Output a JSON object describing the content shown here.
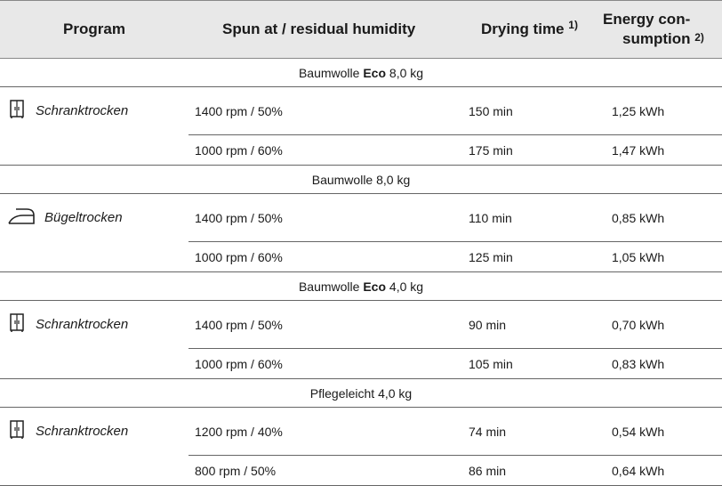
{
  "header": {
    "program": "Program",
    "spun": "Spun at / residual humidity",
    "drying": "Drying time",
    "drying_note": "1)",
    "energy_line1": "Energy con-",
    "energy_line2": "sumption",
    "energy_note": "2)"
  },
  "groups": [
    {
      "title_pre": "Baumwolle ",
      "title_bold": "Eco",
      "title_post": " 8,0 kg",
      "program_icon": "wardrobe-icon",
      "program_label": "Schranktrocken",
      "rows": [
        {
          "spun": "1400 rpm / 50%",
          "time": "150 min",
          "energy": "1,25 kWh"
        },
        {
          "spun": "1000 rpm / 60%",
          "time": "175 min",
          "energy": "1,47 kWh"
        }
      ]
    },
    {
      "title_pre": "Baumwolle 8,0 kg",
      "title_bold": "",
      "title_post": "",
      "program_icon": "iron-icon",
      "program_label": "Bügeltrocken",
      "rows": [
        {
          "spun": "1400 rpm / 50%",
          "time": "110 min",
          "energy": "0,85 kWh"
        },
        {
          "spun": "1000 rpm / 60%",
          "time": "125 min",
          "energy": "1,05 kWh"
        }
      ]
    },
    {
      "title_pre": "Baumwolle ",
      "title_bold": "Eco",
      "title_post": " 4,0 kg",
      "program_icon": "wardrobe-icon",
      "program_label": "Schranktrocken",
      "rows": [
        {
          "spun": "1400 rpm / 50%",
          "time": "90 min",
          "energy": "0,70 kWh"
        },
        {
          "spun": "1000 rpm / 60%",
          "time": "105 min",
          "energy": "0,83 kWh"
        }
      ]
    },
    {
      "title_pre": "Pflegeleicht 4,0 kg",
      "title_bold": "",
      "title_post": "",
      "program_icon": "wardrobe-icon",
      "program_label": "Schranktrocken",
      "rows": [
        {
          "spun": "1200 rpm / 40%",
          "time": "74 min",
          "energy": "0,54 kWh"
        },
        {
          "spun": "800 rpm / 50%",
          "time": "86 min",
          "energy": "0,64 kWh"
        }
      ]
    }
  ]
}
